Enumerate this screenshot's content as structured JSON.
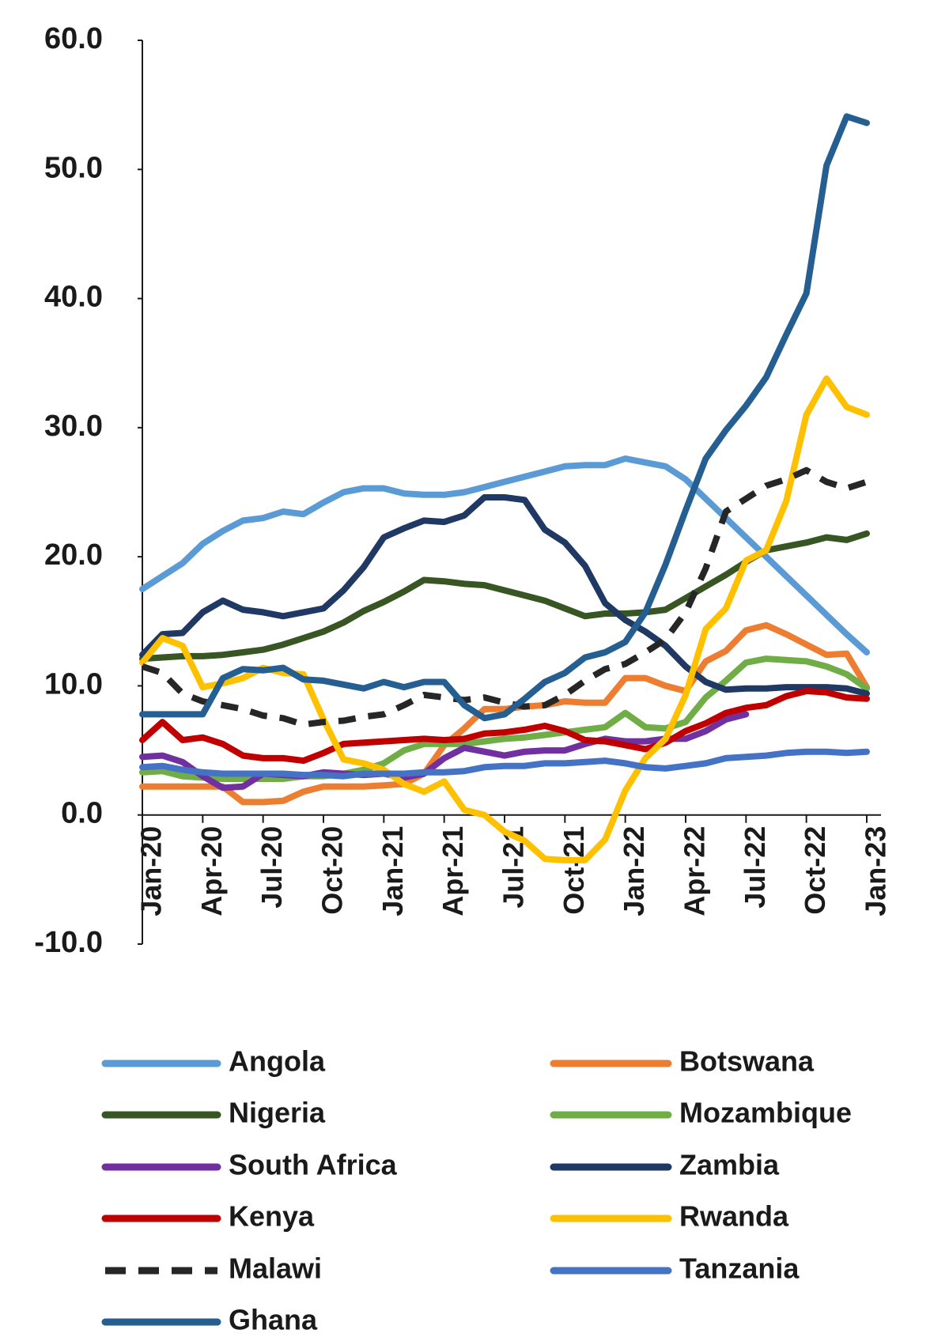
{
  "chart_data": {
    "type": "line",
    "categories": [
      "Jan-20",
      null,
      null,
      "Apr-20",
      null,
      null,
      "Jul-20",
      null,
      null,
      "Oct-20",
      null,
      null,
      "Jan-21",
      null,
      null,
      "Apr-21",
      null,
      null,
      "Jul-21",
      null,
      null,
      "Oct-21",
      null,
      null,
      "Jan-22",
      null,
      null,
      "Apr-22",
      null,
      null,
      "Jul-22",
      null,
      null,
      "Oct-22",
      null,
      null,
      "Jan-23"
    ],
    "ylim": [
      -10,
      60
    ],
    "yticks": [
      {
        "value": -10,
        "label": "-10.0"
      },
      {
        "value": 0,
        "label": "0.0"
      },
      {
        "value": 10,
        "label": "10.0"
      },
      {
        "value": 20,
        "label": "20.0"
      },
      {
        "value": 30,
        "label": "30.0"
      },
      {
        "value": 40,
        "label": "40.0"
      },
      {
        "value": 50,
        "label": "50.0"
      },
      {
        "value": 60,
        "label": "60.0"
      }
    ],
    "grid": false,
    "legend": "bottom",
    "series": [
      {
        "name": "Angola",
        "color": "#5b9bd5",
        "values": [
          17.5,
          18.5,
          19.5,
          21,
          22,
          22.8,
          23,
          23.5,
          23.3,
          24.2,
          25,
          25.3,
          25.3,
          24.9,
          24.8,
          24.8,
          25,
          25.4,
          25.8,
          26.2,
          26.6,
          27,
          27.1,
          27.1,
          27.6,
          27.3,
          27,
          26,
          24.5,
          23,
          21.5,
          20,
          18.5,
          17,
          15.5,
          14,
          12.6
        ]
      },
      {
        "name": "Botswana",
        "color": "#ed7d31",
        "values": [
          2.2,
          2.2,
          2.2,
          2.2,
          2.2,
          1.0,
          1.0,
          1.1,
          1.8,
          2.2,
          2.2,
          2.2,
          2.3,
          2.4,
          3.2,
          5.4,
          6.7,
          8.2,
          8.2,
          8.4,
          8.5,
          8.8,
          8.7,
          8.7,
          10.6,
          10.6,
          10,
          9.6,
          11.9,
          12.7,
          14.3,
          14.7,
          14,
          13.2,
          12.4,
          12.5,
          9.9
        ]
      },
      {
        "name": "Nigeria",
        "color": "#375623",
        "values": [
          12.1,
          12.2,
          12.3,
          12.3,
          12.4,
          12.6,
          12.8,
          13.2,
          13.7,
          14.2,
          14.9,
          15.8,
          16.5,
          17.3,
          18.2,
          18.1,
          17.9,
          17.8,
          17.4,
          17.0,
          16.6,
          16.0,
          15.4,
          15.6,
          15.6,
          15.7,
          15.9,
          16.8,
          17.7,
          18.6,
          19.6,
          20.5,
          20.8,
          21.1,
          21.5,
          21.3,
          21.8
        ]
      },
      {
        "name": "Mozambique",
        "color": "#70ad47",
        "values": [
          3.3,
          3.4,
          3.0,
          2.9,
          2.8,
          2.8,
          2.8,
          2.8,
          3.0,
          3.0,
          3.2,
          3.5,
          4.0,
          5.0,
          5.5,
          5.5,
          5.5,
          5.7,
          5.9,
          6.0,
          6.2,
          6.4,
          6.6,
          6.8,
          7.9,
          6.8,
          6.7,
          7.2,
          9.1,
          10.4,
          11.8,
          12.1,
          12.0,
          11.9,
          11.5,
          10.9,
          9.8
        ]
      },
      {
        "name": "South Africa",
        "color": "#7030a0",
        "values": [
          4.5,
          4.6,
          4.1,
          3.0,
          2.1,
          2.2,
          3.2,
          3.1,
          3.0,
          3.3,
          3.2,
          3.1,
          3.2,
          2.9,
          3.2,
          4.4,
          5.2,
          4.9,
          4.6,
          4.9,
          5.0,
          5.0,
          5.5,
          5.9,
          5.7,
          5.7,
          5.9,
          5.9,
          6.5,
          7.4,
          7.8,
          null,
          null,
          null,
          null,
          null,
          null
        ]
      },
      {
        "name": "Zambia",
        "color": "#203864",
        "values": [
          12.4,
          14.0,
          14.1,
          15.7,
          16.6,
          15.9,
          15.7,
          15.4,
          15.7,
          16.0,
          17.4,
          19.2,
          21.5,
          22.2,
          22.8,
          22.7,
          23.2,
          24.6,
          24.6,
          24.4,
          22.1,
          21.1,
          19.3,
          16.4,
          15.1,
          14.2,
          13.1,
          11.5,
          10.3,
          9.7,
          9.8,
          9.8,
          9.9,
          9.9,
          9.9,
          9.8,
          9.4
        ]
      },
      {
        "name": "Kenya",
        "color": "#c00000",
        "values": [
          5.8,
          7.2,
          5.8,
          6.0,
          5.5,
          4.6,
          4.4,
          4.4,
          4.2,
          4.8,
          5.5,
          5.6,
          5.7,
          5.8,
          5.9,
          5.8,
          5.9,
          6.3,
          6.4,
          6.6,
          6.9,
          6.5,
          5.8,
          5.7,
          5.4,
          5.1,
          5.6,
          6.5,
          7.1,
          7.9,
          8.3,
          8.5,
          9.2,
          9.6,
          9.5,
          9.1,
          9.0
        ]
      },
      {
        "name": "Rwanda",
        "color": "#ffc000",
        "values": [
          11.8,
          13.7,
          13.1,
          9.9,
          10.2,
          10.6,
          11.4,
          11.0,
          10.9,
          7.4,
          4.3,
          4.0,
          3.5,
          2.4,
          1.8,
          2.6,
          0.4,
          0.0,
          -1.3,
          -2.0,
          -3.4,
          -3.5,
          -3.5,
          -1.9,
          1.9,
          4.4,
          5.9,
          9.3,
          14.4,
          16.0,
          19.7,
          20.5,
          24.3,
          31.0,
          33.8,
          31.6,
          31.0
        ]
      },
      {
        "name": "Malawi",
        "color": "#262626",
        "dashed": true,
        "values": [
          11.5,
          11.0,
          9.4,
          8.8,
          8.5,
          8.2,
          7.7,
          7.5,
          7.0,
          7.2,
          7.3,
          7.6,
          7.8,
          8.5,
          9.3,
          9.1,
          8.9,
          9.1,
          8.7,
          8.4,
          8.5,
          9.3,
          10.4,
          11.3,
          11.7,
          12.6,
          13.6,
          15.7,
          19.1,
          23.5,
          24.5,
          25.5,
          26.0,
          26.7,
          25.8,
          25.3,
          25.8
        ]
      },
      {
        "name": "Tanzania",
        "color": "#4472c4",
        "values": [
          3.7,
          3.8,
          3.5,
          3.3,
          3.2,
          3.2,
          3.2,
          3.2,
          3.1,
          3.1,
          3.0,
          3.2,
          3.2,
          3.2,
          3.3,
          3.3,
          3.4,
          3.7,
          3.8,
          3.8,
          4.0,
          4.0,
          4.1,
          4.2,
          4.0,
          3.7,
          3.6,
          3.8,
          4.0,
          4.4,
          4.5,
          4.6,
          4.8,
          4.9,
          4.9,
          4.8,
          4.9
        ]
      },
      {
        "name": "Ghana",
        "color": "#255e91",
        "values": [
          7.8,
          7.8,
          7.8,
          7.8,
          10.6,
          11.3,
          11.2,
          11.4,
          10.5,
          10.4,
          10.1,
          9.8,
          10.3,
          9.9,
          10.3,
          10.3,
          8.5,
          7.5,
          7.8,
          9.0,
          10.3,
          11.0,
          12.2,
          12.6,
          13.4,
          15.7,
          19.4,
          23.6,
          27.6,
          29.8,
          31.7,
          33.9,
          37.2,
          40.4,
          50.3,
          54.1,
          53.6
        ]
      }
    ]
  }
}
